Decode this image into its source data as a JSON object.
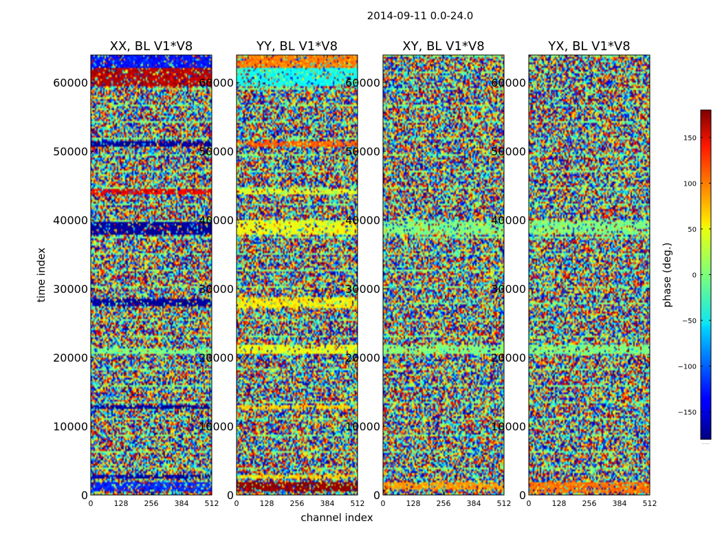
{
  "chart_data": {
    "type": "heatmap",
    "title": "2014-09-11 0.0-24.0",
    "xlabel": "channel index",
    "ylabel": "time index",
    "xlim": [
      0,
      512
    ],
    "ylim": [
      0,
      64000
    ],
    "x_ticks": [
      "0",
      "128",
      "256",
      "384",
      "512"
    ],
    "y_ticks": [
      "0",
      "10000",
      "20000",
      "30000",
      "40000",
      "50000",
      "60000"
    ],
    "x_tick_values": [
      0,
      128,
      256,
      384,
      512
    ],
    "y_tick_values": [
      0,
      10000,
      20000,
      30000,
      40000,
      50000,
      60000
    ],
    "colorbar": {
      "label": "phase (deg.)",
      "range": [
        -180,
        180
      ],
      "ticks": [
        "150",
        "100",
        "50",
        "0",
        "−50",
        "−100",
        "−150"
      ],
      "tick_values": [
        150,
        100,
        50,
        0,
        -50,
        -100,
        -150
      ],
      "colormap": "jet",
      "dots": "······"
    },
    "panels": [
      {
        "title": "XX, BL V1*V8",
        "coherent_bands": [
          {
            "y": [
              500,
              1800
            ],
            "phase": -120
          },
          {
            "y": [
              2400,
              3000
            ],
            "phase": -170
          },
          {
            "y": [
              12500,
              13200
            ],
            "phase": -170
          },
          {
            "y": [
              20600,
              21300
            ],
            "phase": 0
          },
          {
            "y": [
              27500,
              28500
            ],
            "phase": -170
          },
          {
            "y": [
              37800,
              39800
            ],
            "phase": -170
          },
          {
            "y": [
              43800,
              44600
            ],
            "phase": 140
          },
          {
            "y": [
              50800,
              51500
            ],
            "phase": -170
          },
          {
            "y": [
              59500,
              62000
            ],
            "phase": 160
          },
          {
            "y": [
              62000,
              64000
            ],
            "phase": -130
          }
        ]
      },
      {
        "title": "YY, BL V1*V8",
        "coherent_bands": [
          {
            "y": [
              500,
              1800
            ],
            "phase": 175
          },
          {
            "y": [
              2400,
              3000
            ],
            "phase": 60
          },
          {
            "y": [
              12500,
              13200
            ],
            "phase": 60
          },
          {
            "y": [
              20600,
              21800
            ],
            "phase": 40
          },
          {
            "y": [
              27200,
              28800
            ],
            "phase": 50
          },
          {
            "y": [
              37800,
              40000
            ],
            "phase": 40
          },
          {
            "y": [
              43800,
              44600
            ],
            "phase": 30
          },
          {
            "y": [
              50800,
              51500
            ],
            "phase": 100
          },
          {
            "y": [
              59500,
              62000
            ],
            "phase": -40
          },
          {
            "y": [
              62000,
              64000
            ],
            "phase": 90
          }
        ]
      },
      {
        "title": "XY, BL V1*V8",
        "coherent_bands": [
          {
            "y": [
              700,
              1800
            ],
            "phase": 80
          },
          {
            "y": [
              20600,
              21800
            ],
            "phase": 0
          },
          {
            "y": [
              37800,
              39800
            ],
            "phase": 0
          }
        ]
      },
      {
        "title": "YX, BL V1*V8",
        "coherent_bands": [
          {
            "y": [
              300,
              1800
            ],
            "phase": 95
          },
          {
            "y": [
              20600,
              21800
            ],
            "phase": 0
          },
          {
            "y": [
              37800,
              39800
            ],
            "phase": 0
          }
        ]
      }
    ]
  }
}
